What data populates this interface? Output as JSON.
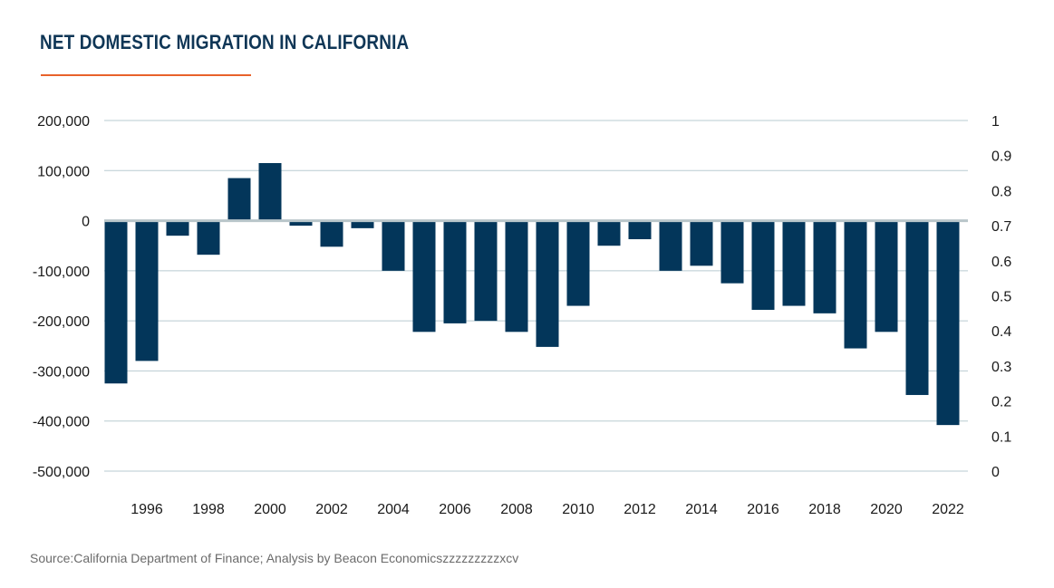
{
  "title": "NET DOMESTIC MIGRATION IN CALIFORNIA",
  "source": "Source:California Department of Finance; Analysis by Beacon Economicszzzzzzzzzxcv",
  "colors": {
    "bar": "#03365a",
    "accent_rule": "#e8622a",
    "grid": "#b9cbd1",
    "zero_line": "#b9c6ca"
  },
  "chart_data": {
    "type": "bar",
    "title": "NET DOMESTIC MIGRATION IN CALIFORNIA",
    "xlabel": "",
    "ylabel": "",
    "categories": [
      "1995",
      "1996",
      "1997",
      "1998",
      "1999",
      "2000",
      "2001",
      "2002",
      "2003",
      "2004",
      "2005",
      "2006",
      "2007",
      "2008",
      "2009",
      "2010",
      "2011",
      "2012",
      "2013",
      "2014",
      "2015",
      "2016",
      "2017",
      "2018",
      "2019",
      "2020",
      "2021",
      "2022"
    ],
    "x_tick_labels": [
      "1996",
      "1998",
      "2000",
      "2002",
      "2004",
      "2006",
      "2008",
      "2010",
      "2012",
      "2014",
      "2016",
      "2018",
      "2020",
      "2022"
    ],
    "series": [
      {
        "values": [
          -325000,
          -280000,
          -30000,
          -68000,
          85000,
          115000,
          -10000,
          -52000,
          -15000,
          -100000,
          -222000,
          -205000,
          -200000,
          -222000,
          -252000,
          -170000,
          -50000,
          -37000,
          -100000,
          -90000,
          -125000,
          -178000,
          -170000,
          -185000,
          -255000,
          -222000,
          -348000,
          -408000
        ]
      }
    ],
    "ylim": [
      -500000,
      200000
    ],
    "y_tick_labels": [
      "200,000",
      "100,000",
      "0",
      "-100,000",
      "-200,000",
      "-300,000",
      "-400,000",
      "-500,000"
    ],
    "y2lim": [
      0,
      1
    ],
    "y2_tick_labels": [
      "1",
      "0.9",
      "0.8",
      "0.7",
      "0.6",
      "0.5",
      "0.4",
      "0.3",
      "0.2",
      "0.1",
      "0"
    ],
    "grid": true,
    "legend": "none"
  }
}
